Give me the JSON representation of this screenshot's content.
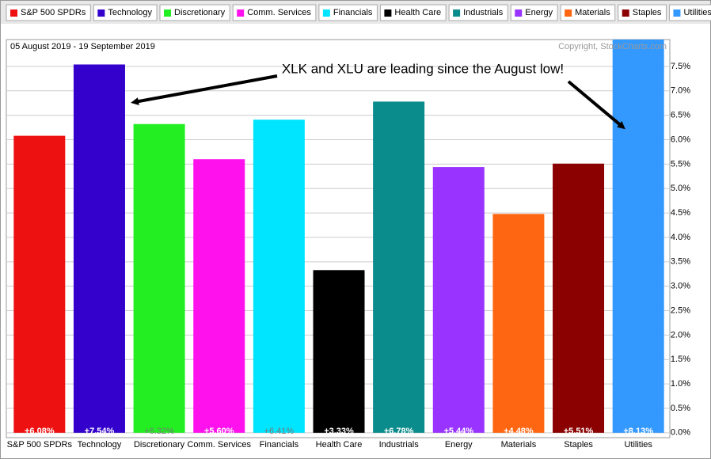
{
  "chart_data": {
    "type": "bar",
    "subtitle": "05 August 2019 - 19 September 2019",
    "copyright": "Copyright, StockCharts.com",
    "annotation": "XLK and XLU are leading since the August low!",
    "categories": [
      "S&P 500 SPDRs",
      "Technology",
      "Discretionary",
      "Comm. Services",
      "Financials",
      "Health Care",
      "Industrials",
      "Energy",
      "Materials",
      "Staples",
      "Utilities"
    ],
    "values": [
      6.08,
      7.54,
      6.32,
      5.6,
      6.41,
      3.33,
      6.78,
      5.44,
      4.48,
      5.51,
      8.13
    ],
    "value_labels": [
      "+6.08%",
      "+7.54%",
      "+6.32%",
      "+5.60%",
      "+6.41%",
      "+3.33%",
      "+6.78%",
      "+5.44%",
      "+4.48%",
      "+5.51%",
      "+8.13%"
    ],
    "colors": [
      "#ee1111",
      "#3300cc",
      "#22ee22",
      "#ff11ee",
      "#00e5ff",
      "#000000",
      "#0a8c8c",
      "#9933ff",
      "#ff6611",
      "#8b0000",
      "#3399ff"
    ],
    "ylim": [
      -0.1,
      8.05
    ],
    "yticks": [
      {
        "value": 0,
        "label": "0.0%"
      },
      {
        "value": 0.5,
        "label": "0.5%"
      },
      {
        "value": 1,
        "label": "1.0%"
      },
      {
        "value": 1.5,
        "label": "1.5%"
      },
      {
        "value": 2,
        "label": "2.0%"
      },
      {
        "value": 2.5,
        "label": "2.5%"
      },
      {
        "value": 3,
        "label": "3.0%"
      },
      {
        "value": 3.5,
        "label": "3.5%"
      },
      {
        "value": 4,
        "label": "4.0%"
      },
      {
        "value": 4.5,
        "label": "4.5%"
      },
      {
        "value": 5,
        "label": "5.0%"
      },
      {
        "value": 5.5,
        "label": "5.5%"
      },
      {
        "value": 6,
        "label": "6.0%"
      },
      {
        "value": 6.5,
        "label": "6.5%"
      },
      {
        "value": 7,
        "label": "7.0%"
      },
      {
        "value": 7.5,
        "label": "7.5%"
      }
    ],
    "grid": true
  }
}
